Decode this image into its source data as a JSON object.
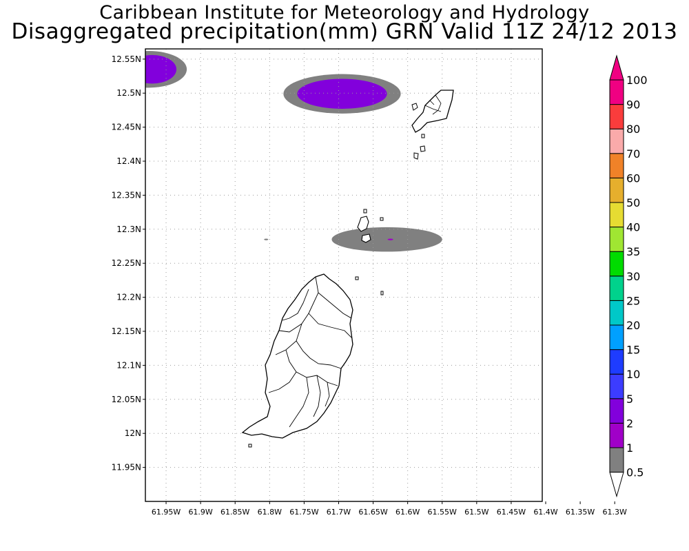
{
  "titles": {
    "line1": "Caribbean Institute for Meteorology and Hydrology",
    "line2": "Disaggregated precipitation(mm) GRN Valid 11Z 24/12 2013"
  },
  "map": {
    "lon_range": [
      -61.98,
      -61.405
    ],
    "lat_range": [
      11.9,
      12.565
    ],
    "grid": true,
    "lon_ticks": [
      {
        "value": -61.95,
        "label": "61.95W"
      },
      {
        "value": -61.9,
        "label": "61.9W"
      },
      {
        "value": -61.85,
        "label": "61.85W"
      },
      {
        "value": -61.8,
        "label": "61.8W"
      },
      {
        "value": -61.75,
        "label": "61.75W"
      },
      {
        "value": -61.7,
        "label": "61.7W"
      },
      {
        "value": -61.65,
        "label": "61.65W"
      },
      {
        "value": -61.6,
        "label": "61.6W"
      },
      {
        "value": -61.55,
        "label": "61.55W"
      },
      {
        "value": -61.5,
        "label": "61.5W"
      },
      {
        "value": -61.45,
        "label": "61.45W"
      },
      {
        "value": -61.4,
        "label": "61.4W"
      },
      {
        "value": -61.35,
        "label": "61.35W"
      },
      {
        "value": -61.3,
        "label": "61.3W"
      }
    ],
    "lat_ticks": [
      {
        "value": 12.55,
        "label": "12.55N"
      },
      {
        "value": 12.5,
        "label": "12.5N"
      },
      {
        "value": 12.45,
        "label": "12.45N"
      },
      {
        "value": 12.4,
        "label": "12.4N"
      },
      {
        "value": 12.35,
        "label": "12.35N"
      },
      {
        "value": 12.3,
        "label": "12.3N"
      },
      {
        "value": 12.25,
        "label": "12.25N"
      },
      {
        "value": 12.2,
        "label": "12.2N"
      },
      {
        "value": 12.15,
        "label": "12.15N"
      },
      {
        "value": 12.1,
        "label": "12.1N"
      },
      {
        "value": 12.05,
        "label": "12.05N"
      },
      {
        "value": 12,
        "label": "12N"
      },
      {
        "value": 11.95,
        "label": "11.95N"
      }
    ]
  },
  "precip_areas": [
    {
      "name": "northwest-corner-cell",
      "lon": -61.975,
      "lat": 12.535,
      "rlon": 0.055,
      "rlat": 0.027,
      "class": "0.5-1",
      "core": {
        "lon": -61.97,
        "lat": 12.535,
        "rlon": 0.035,
        "rlat": 0.021,
        "class": "2-5"
      }
    },
    {
      "name": "north-cell",
      "lon": -61.695,
      "lat": 12.499,
      "rlon": 0.085,
      "rlat": 0.029,
      "class": "0.5-1",
      "core": {
        "lon": -61.695,
        "lat": 12.499,
        "rlon": 0.065,
        "rlat": 0.022,
        "class": "2-5"
      }
    },
    {
      "name": "north-grenada-band",
      "lon": -61.63,
      "lat": 12.285,
      "rlon": 0.08,
      "rlat": 0.018,
      "class": "0.5-1",
      "core": {
        "lon": -61.625,
        "lat": 12.285,
        "rlon": 0.004,
        "rlat": 0.0012,
        "class": "1-2"
      }
    },
    {
      "name": "west-speck",
      "lon": -61.805,
      "lat": 12.285,
      "rlon": 0.003,
      "rlat": 0.0012,
      "class": "0.5-1"
    }
  ],
  "colorbar": {
    "bounds": [
      "0.5",
      "1",
      "2",
      "5",
      "10",
      "15",
      "20",
      "25",
      "30",
      "35",
      "40",
      "50",
      "60",
      "70",
      "80",
      "90",
      "100"
    ],
    "colors": [
      "#808080",
      "#a000c8",
      "#8200dc",
      "#3c3cff",
      "#1e3cff",
      "#00a0ff",
      "#00c8c8",
      "#00d28c",
      "#00dc00",
      "#a0e632",
      "#e6dc32",
      "#e6af2d",
      "#f08228",
      "#faaaaa",
      "#fa3c3c",
      "#f00082"
    ],
    "under_color": "#ffffff",
    "over_color": "#f00082"
  }
}
